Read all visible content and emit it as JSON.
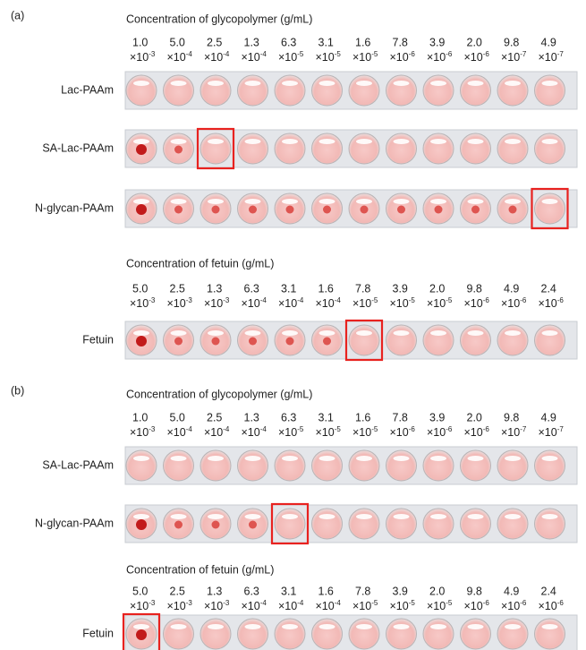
{
  "panels": [
    {
      "label": "(a)",
      "sections": [
        {
          "header": "Concentration of glycopolymer (g/mL)",
          "base": "×10",
          "concentrations": [
            [
              "1.0",
              "-3"
            ],
            [
              "5.0",
              "-4"
            ],
            [
              "2.5",
              "-4"
            ],
            [
              "1.3",
              "-4"
            ],
            [
              "6.3",
              "-5"
            ],
            [
              "3.1",
              "-5"
            ],
            [
              "1.6",
              "-5"
            ],
            [
              "7.8",
              "-6"
            ],
            [
              "3.9",
              "-6"
            ],
            [
              "2.0",
              "-6"
            ],
            [
              "9.8",
              "-7"
            ],
            [
              "4.9",
              "-7"
            ]
          ],
          "rows": [
            "Lac-PAAm",
            "SA-Lac-PAAm",
            "N-glycan-PAAm"
          ]
        },
        {
          "header": "Concentration of fetuin (g/mL)",
          "base": "×10",
          "concentrations": [
            [
              "5.0",
              "-3"
            ],
            [
              "2.5",
              "-3"
            ],
            [
              "1.3",
              "-3"
            ],
            [
              "6.3",
              "-4"
            ],
            [
              "3.1",
              "-4"
            ],
            [
              "1.6",
              "-4"
            ],
            [
              "7.8",
              "-5"
            ],
            [
              "3.9",
              "-5"
            ],
            [
              "2.0",
              "-5"
            ],
            [
              "9.8",
              "-6"
            ],
            [
              "4.9",
              "-6"
            ],
            [
              "2.4",
              "-6"
            ]
          ],
          "rows": [
            "Fetuin"
          ]
        }
      ]
    },
    {
      "label": "(b)",
      "sections": [
        {
          "header": "Concentration of glycopolymer (g/mL)",
          "base": "×10",
          "concentrations": [
            [
              "1.0",
              "-3"
            ],
            [
              "5.0",
              "-4"
            ],
            [
              "2.5",
              "-4"
            ],
            [
              "1.3",
              "-4"
            ],
            [
              "6.3",
              "-5"
            ],
            [
              "3.1",
              "-5"
            ],
            [
              "1.6",
              "-5"
            ],
            [
              "7.8",
              "-6"
            ],
            [
              "3.9",
              "-6"
            ],
            [
              "2.0",
              "-6"
            ],
            [
              "9.8",
              "-7"
            ],
            [
              "4.9",
              "-7"
            ]
          ],
          "rows": [
            "SA-Lac-PAAm",
            "N-glycan-PAAm"
          ]
        },
        {
          "header": "Concentration of fetuin (g/mL)",
          "base": "×10",
          "concentrations": [
            [
              "5.0",
              "-3"
            ],
            [
              "2.5",
              "-3"
            ],
            [
              "1.3",
              "-3"
            ],
            [
              "6.3",
              "-4"
            ],
            [
              "3.1",
              "-4"
            ],
            [
              "1.6",
              "-4"
            ],
            [
              "7.8",
              "-5"
            ],
            [
              "3.9",
              "-5"
            ],
            [
              "2.0",
              "-5"
            ],
            [
              "9.8",
              "-6"
            ],
            [
              "4.9",
              "-6"
            ],
            [
              "2.4",
              "-6"
            ]
          ],
          "rows": [
            "Fetuin"
          ]
        }
      ]
    }
  ]
}
